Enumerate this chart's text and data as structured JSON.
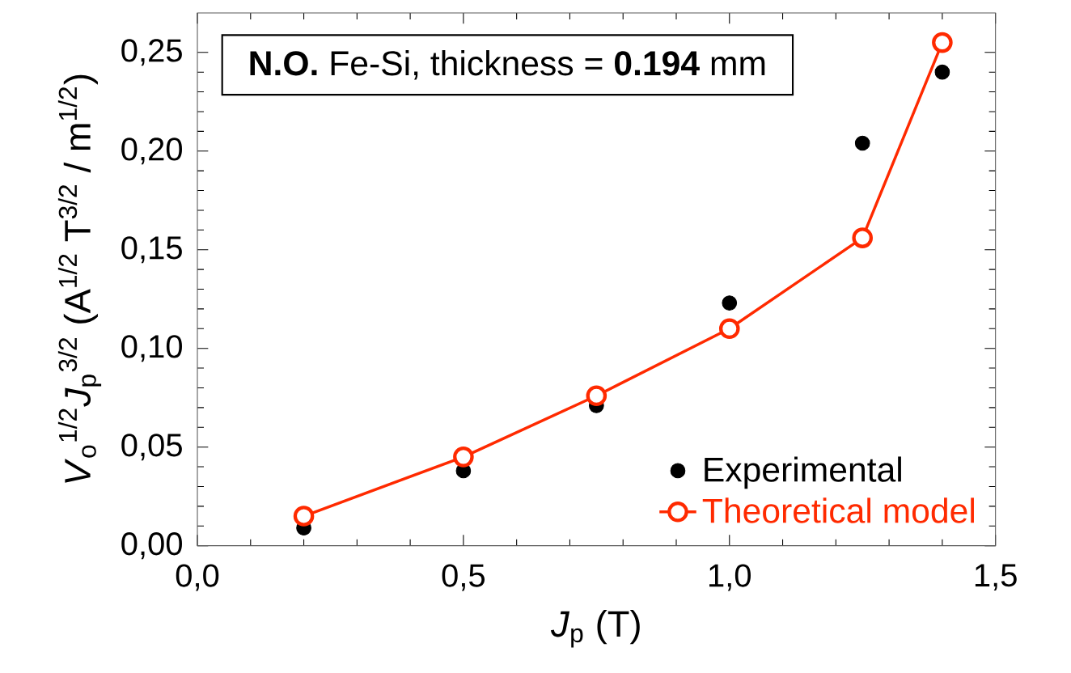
{
  "chart_data": {
    "type": "scatter",
    "xlabel": "*J*$_{p}$   (T)",
    "ylabel": "*V*$_{o}$$^{1/2}$*J*$_{p}$$^{3/2}$   (A$^{1/2}$ T$^{3/2}$ / m$^{1/2}$)",
    "annotations": [
      "**N.O.**  Fe-Si, thickness = **0.194** mm"
    ],
    "x": [
      0.2,
      0.5,
      0.75,
      1.0,
      1.25,
      1.4
    ],
    "series": [
      {
        "name": "Experimental",
        "color": "#000000",
        "marker": "circle",
        "values": [
          0.009,
          0.038,
          0.071,
          0.123,
          0.204,
          0.24
        ]
      },
      {
        "name": "Theoretical model",
        "type": "line",
        "color": "#ff2a00",
        "marker": "circle",
        "line_style": "solid",
        "values": [
          0.015,
          0.045,
          0.076,
          0.11,
          0.156,
          0.255
        ]
      }
    ],
    "xlim": [
      0,
      1.5
    ],
    "ylim": [
      0,
      0.27
    ],
    "xticks": [
      {
        "value": 0,
        "label": "0,0"
      },
      {
        "value": 0.5,
        "label": "0,5"
      },
      {
        "value": 1.0,
        "label": "1,0"
      },
      {
        "value": 1.5,
        "label": "1,5"
      }
    ],
    "yticks": [
      {
        "value": 0,
        "label": "0,00"
      },
      {
        "value": 0.05,
        "label": "0,05"
      },
      {
        "value": 0.1,
        "label": "0,10"
      },
      {
        "value": 0.15,
        "label": "0,15"
      },
      {
        "value": 0.2,
        "label": "0,20"
      },
      {
        "value": 0.25,
        "label": "0,25"
      }
    ],
    "grid": false,
    "legend": "bottom right"
  }
}
